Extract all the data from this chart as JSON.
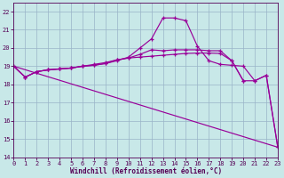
{
  "xlabel": "Windchill (Refroidissement éolien,°C)",
  "background_color": "#c8e8e8",
  "grid_color": "#9ab4c8",
  "line_color": "#990099",
  "xlim": [
    0,
    23
  ],
  "ylim": [
    14,
    22.5
  ],
  "yticks": [
    14,
    15,
    16,
    17,
    18,
    19,
    20,
    21,
    22
  ],
  "xticks": [
    0,
    1,
    2,
    3,
    4,
    5,
    6,
    7,
    8,
    9,
    10,
    11,
    12,
    13,
    14,
    15,
    16,
    17,
    18,
    19,
    20,
    21,
    22,
    23
  ],
  "line1_x": [
    0,
    1,
    2,
    3,
    4,
    5,
    6,
    7,
    8,
    9,
    10,
    11,
    12,
    13,
    14,
    15,
    16,
    17,
    18,
    19,
    20,
    21,
    22,
    23
  ],
  "line1_y": [
    19.0,
    18.4,
    18.7,
    18.8,
    18.85,
    18.9,
    19.0,
    19.05,
    19.15,
    19.3,
    19.5,
    20.0,
    20.5,
    21.65,
    21.65,
    21.5,
    20.1,
    19.3,
    19.1,
    19.05,
    19.0,
    18.2,
    18.5,
    14.55
  ],
  "line2_x": [
    0,
    1,
    2,
    3,
    4,
    5,
    6,
    7,
    8,
    9,
    10,
    11,
    12,
    13,
    14,
    15,
    16,
    17,
    18,
    19,
    20,
    21,
    22,
    23
  ],
  "line2_y": [
    19.0,
    18.4,
    18.7,
    18.8,
    18.85,
    18.9,
    19.0,
    19.05,
    19.15,
    19.35,
    19.45,
    19.65,
    19.9,
    19.85,
    19.9,
    19.9,
    19.9,
    19.85,
    19.85,
    19.3,
    18.2,
    18.2,
    18.5,
    14.55
  ],
  "line3_x": [
    0,
    1,
    2,
    3,
    4,
    5,
    6,
    7,
    8,
    9,
    10,
    11,
    12,
    13,
    14,
    15,
    16,
    17,
    18,
    19,
    20
  ],
  "line3_y": [
    19.0,
    18.4,
    18.7,
    18.8,
    18.85,
    18.9,
    19.0,
    19.1,
    19.2,
    19.35,
    19.45,
    19.5,
    19.55,
    19.6,
    19.65,
    19.7,
    19.72,
    19.72,
    19.7,
    19.3,
    18.2
  ],
  "line4_x": [
    0,
    23
  ],
  "line4_y": [
    19.0,
    14.55
  ]
}
